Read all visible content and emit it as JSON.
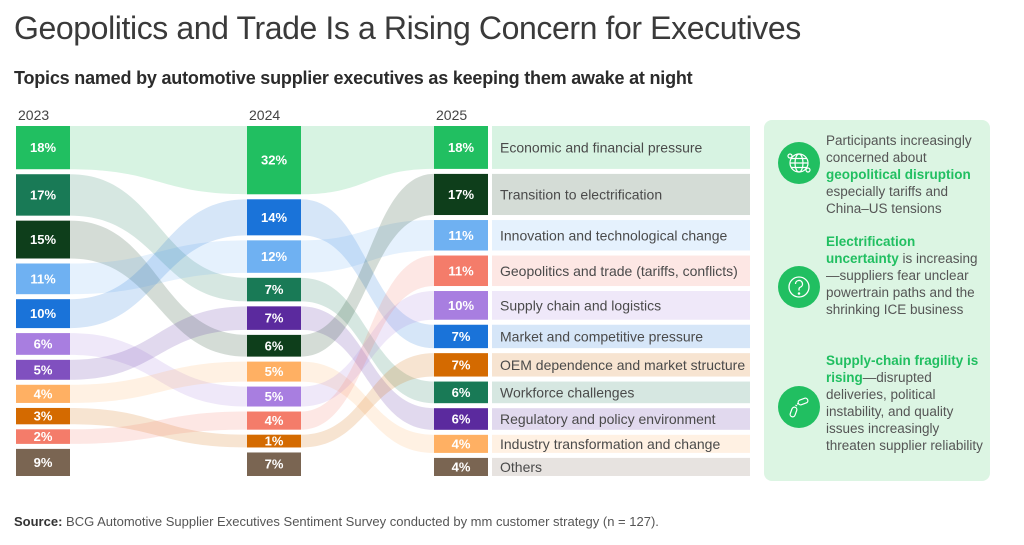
{
  "title": "Geopolitics and Trade Is a Rising Concern for Executives",
  "subtitle": "Topics named by automotive supplier executives as keeping them awake at night",
  "source": {
    "label": "Source:",
    "text": "BCG Automotive Supplier Executives Sentiment Survey conducted by mm customer strategy (n = 127)."
  },
  "colors": {
    "economic": "#21bf61",
    "workforce": "#197a56",
    "electrification": "#0e3e1b",
    "innovation": "#6fb1f2",
    "market": "#1a73d9",
    "supply_chain": "#a87ee0",
    "regulatory": "#5b2a9e",
    "regulatory_2023": "#8050bf",
    "industry": "#ffb063",
    "oem": "#d46a00",
    "geopolitics": "#f47c6a",
    "others": "#7a6552",
    "side_panel_bg": "#dcf5e3",
    "accent_green": "#21bf61"
  },
  "chart_data": {
    "type": "sankey",
    "title": "Topics named by automotive supplier executives as keeping them awake at night",
    "unit": "% of executives",
    "years": [
      "2023",
      "2024",
      "2025"
    ],
    "topics": [
      {
        "key": "economic",
        "label": "Economic and financial pressure",
        "values": {
          "2023": 18,
          "2024": 32,
          "2025": 18
        }
      },
      {
        "key": "electrification",
        "label": "Transition to electrification",
        "values": {
          "2023": 15,
          "2024": 6,
          "2025": 17
        }
      },
      {
        "key": "innovation",
        "label": "Innovation and technological change",
        "values": {
          "2023": 11,
          "2024": 12,
          "2025": 11
        }
      },
      {
        "key": "geopolitics",
        "label": "Geopolitics and trade (tariffs, conflicts)",
        "values": {
          "2023": 2,
          "2024": 4,
          "2025": 11
        }
      },
      {
        "key": "supply_chain",
        "label": "Supply chain and logistics",
        "values": {
          "2023": 6,
          "2024": 5,
          "2025": 10
        }
      },
      {
        "key": "market",
        "label": "Market and competitive pressure",
        "values": {
          "2023": 10,
          "2024": 14,
          "2025": 7
        }
      },
      {
        "key": "oem",
        "label": "OEM dependence and market structure",
        "values": {
          "2023": 3,
          "2024": 1,
          "2025": 7
        }
      },
      {
        "key": "workforce",
        "label": "Workforce challenges",
        "values": {
          "2023": 17,
          "2024": 7,
          "2025": 6
        }
      },
      {
        "key": "regulatory",
        "label": "Regulatory and policy environment",
        "values": {
          "2023": 5,
          "2024": 7,
          "2025": 6
        }
      },
      {
        "key": "industry",
        "label": "Industry transformation and change",
        "values": {
          "2023": 4,
          "2024": 5,
          "2025": 4
        }
      },
      {
        "key": "others",
        "label": "Others",
        "values": {
          "2023": 9,
          "2024": 7,
          "2025": 4
        }
      }
    ],
    "order": {
      "2023": [
        "economic",
        "workforce",
        "electrification",
        "innovation",
        "market",
        "supply_chain",
        "regulatory",
        "industry",
        "oem",
        "geopolitics",
        "others"
      ],
      "2024": [
        "economic",
        "market",
        "innovation",
        "workforce",
        "regulatory",
        "electrification",
        "industry",
        "supply_chain",
        "geopolitics",
        "oem",
        "others"
      ],
      "2025": [
        "economic",
        "electrification",
        "innovation",
        "geopolitics",
        "supply_chain",
        "market",
        "oem",
        "workforce",
        "regulatory",
        "industry",
        "others"
      ]
    },
    "flows_drawn": {
      "2023-2024": [
        "economic",
        "workforce",
        "electrification",
        "innovation",
        "market",
        "supply_chain",
        "regulatory",
        "industry",
        "oem",
        "geopolitics"
      ],
      "2024-2025": [
        "economic",
        "market",
        "innovation",
        "workforce",
        "regulatory",
        "electrification",
        "industry",
        "supply_chain",
        "geopolitics",
        "oem"
      ]
    }
  },
  "side_panel": {
    "notes": [
      {
        "icon": "globe-icon",
        "pre": "Participants increasingly concerned about ",
        "highlight": "geopolitical disruption",
        "post": " especially tariffs and China–US tensions"
      },
      {
        "icon": "question-icon",
        "pre": "",
        "highlight": "Electrification uncertainty",
        "post": " is increasing—suppliers fear unclear powertrain paths and the shrinking ICE business"
      },
      {
        "icon": "broken-chain-icon",
        "pre": "",
        "highlight": "Supply-chain fragility is rising",
        "post": "—disrupted deliveries, political instability, and quality issues increasingly threaten supplier reliability"
      }
    ]
  }
}
